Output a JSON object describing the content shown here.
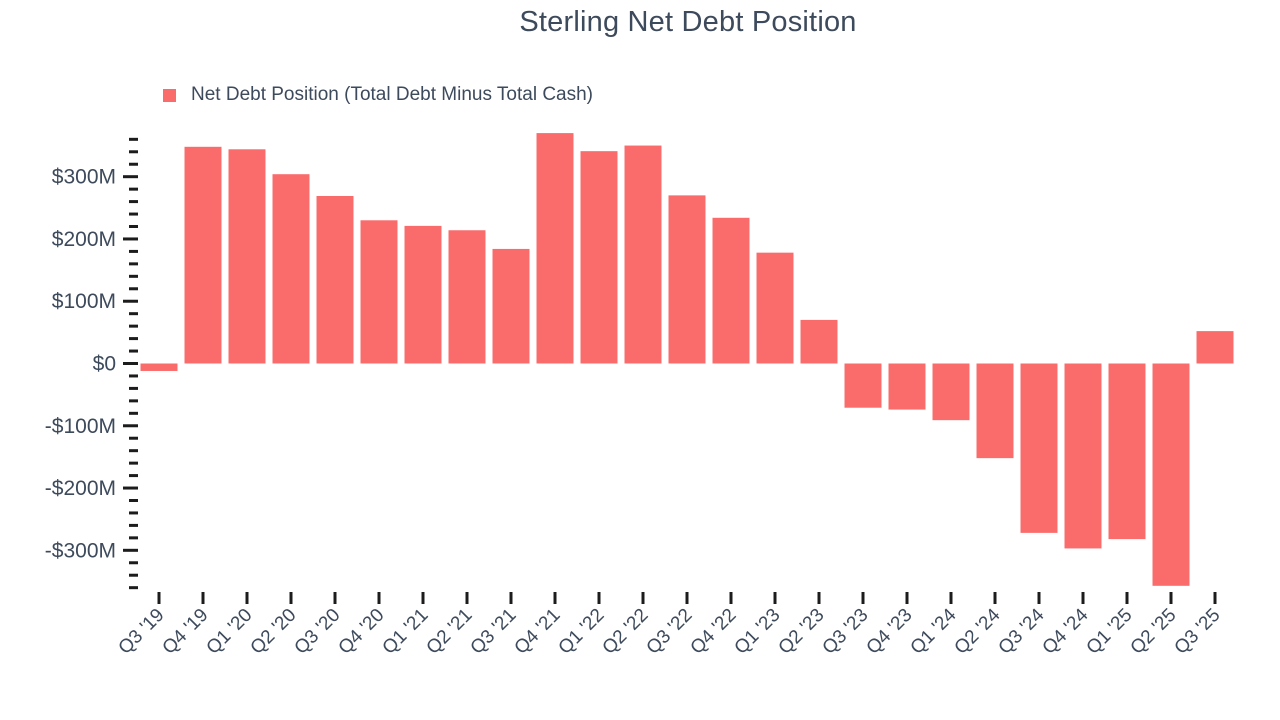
{
  "chart_data": {
    "type": "bar",
    "title": "Sterling Net Debt Position",
    "legend": "Net Debt Position (Total Debt Minus Total Cash)",
    "legend_position": "top-left",
    "grid": false,
    "categories": [
      "Q3 '19",
      "Q4 '19",
      "Q1 '20",
      "Q2 '20",
      "Q3 '20",
      "Q4 '20",
      "Q1 '21",
      "Q2 '21",
      "Q3 '21",
      "Q4 '21",
      "Q1 '22",
      "Q2 '22",
      "Q3 '22",
      "Q4 '22",
      "Q1 '23",
      "Q2 '23",
      "Q3 '23",
      "Q4 '23",
      "Q1 '24",
      "Q2 '24",
      "Q3 '24",
      "Q4 '24",
      "Q1 '25",
      "Q2 '25",
      "Q3 '25"
    ],
    "values": [
      -12,
      348,
      344,
      304,
      269,
      230,
      221,
      214,
      184,
      370,
      341,
      350,
      270,
      234,
      178,
      70,
      -71,
      -74,
      -91,
      -152,
      -272,
      -297,
      -282,
      -357,
      52
    ],
    "values_unit_hint": "values in millions of dollars as labeled on axis",
    "y_ticks": [
      {
        "v": 300,
        "label": "$300M"
      },
      {
        "v": 200,
        "label": "$200M"
      },
      {
        "v": 100,
        "label": "$100M"
      },
      {
        "v": 0,
        "label": "$0"
      },
      {
        "v": -100,
        "label": "-$100M"
      },
      {
        "v": -200,
        "label": "-$200M"
      },
      {
        "v": -300,
        "label": "-$300M"
      }
    ],
    "y_minor_step": 20,
    "ylim": [
      -360,
      360
    ],
    "xlabel": "",
    "ylabel": "",
    "colors": {
      "bar": "#fa6c6c",
      "text": "#3d4a5c",
      "tick": "#1c1c1c"
    }
  }
}
